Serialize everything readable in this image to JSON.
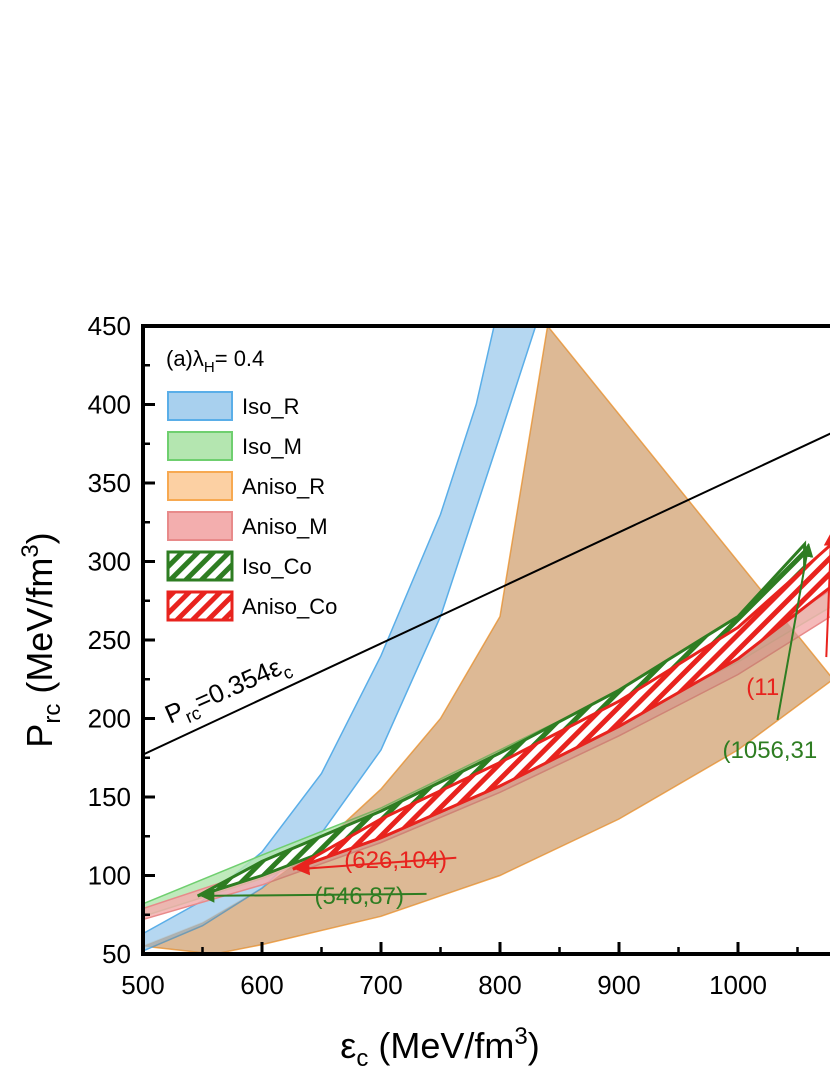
{
  "chart_data": {
    "type": "area",
    "panel_label": "(a)",
    "panel_param": "λ",
    "panel_param_sub": "H",
    "panel_param_value": "= 0.4",
    "xlabel_sym": "ε",
    "xlabel_sub": "c",
    "xlabel_unit": " (MeV/fm",
    "xlabel_sup": "3",
    "xlabel_close": ")",
    "ylabel_sym": "P",
    "ylabel_sub": "rc",
    "ylabel_unit": " (MeV/fm",
    "ylabel_sup": "3",
    "ylabel_close": ")",
    "xlim": [
      500,
      1080
    ],
    "ylim": [
      50,
      450
    ],
    "x_ticks": [
      500,
      600,
      700,
      800,
      900,
      1000
    ],
    "x_tick_labels": [
      "500",
      "600",
      "700",
      "800",
      "900",
      "1000"
    ],
    "y_ticks": [
      50,
      100,
      150,
      200,
      250,
      300,
      350,
      400,
      450
    ],
    "y_tick_labels": [
      "50",
      "100",
      "150",
      "200",
      "250",
      "300",
      "350",
      "400",
      "450"
    ],
    "reference_line": {
      "slope": 0.354,
      "label_p": "P",
      "label_sub": "rc",
      "label_eq": "=0.354ε",
      "label_sub2": "c"
    },
    "series": [
      {
        "name": "Iso_R",
        "style": "band",
        "color": "#5aaee8",
        "fill": "#a8d0ee",
        "upper": [
          [
            500,
            63
          ],
          [
            550,
            84
          ],
          [
            600,
            115
          ],
          [
            650,
            165
          ],
          [
            700,
            240
          ],
          [
            750,
            330
          ],
          [
            780,
            400
          ],
          [
            795,
            450
          ]
        ],
        "lower": [
          [
            500,
            52
          ],
          [
            550,
            68
          ],
          [
            600,
            92
          ],
          [
            650,
            127
          ],
          [
            700,
            180
          ],
          [
            750,
            265
          ],
          [
            800,
            380
          ],
          [
            830,
            450
          ]
        ]
      },
      {
        "name": "Iso_M",
        "style": "band",
        "color": "#6fcf6f",
        "fill": "#b4e6b0",
        "upper": [
          [
            500,
            82
          ],
          [
            600,
            113
          ],
          [
            700,
            143
          ],
          [
            800,
            180
          ],
          [
            900,
            217
          ],
          [
            1000,
            257
          ],
          [
            1080,
            295
          ]
        ],
        "lower": [
          [
            500,
            74
          ],
          [
            600,
            98
          ],
          [
            700,
            127
          ],
          [
            800,
            161
          ],
          [
            900,
            198
          ],
          [
            1000,
            236
          ],
          [
            1080,
            272
          ]
        ]
      },
      {
        "name": "Aniso_R",
        "style": "band",
        "color": "#f7a951",
        "fill": "#fcd0a3",
        "upper": [
          [
            500,
            55
          ],
          [
            550,
            70
          ],
          [
            600,
            92
          ],
          [
            650,
            120
          ],
          [
            700,
            155
          ],
          [
            750,
            200
          ],
          [
            800,
            265
          ],
          [
            840,
            450
          ]
        ],
        "lower": [
          [
            560,
            50
          ],
          [
            600,
            56
          ],
          [
            700,
            74
          ],
          [
            800,
            100
          ],
          [
            900,
            136
          ],
          [
            1000,
            180
          ],
          [
            1080,
            225
          ]
        ]
      },
      {
        "name": "Aniso_M",
        "style": "band",
        "color": "#e88a8a",
        "fill": "#f3aeae",
        "upper": [
          [
            500,
            79
          ],
          [
            600,
            104
          ],
          [
            700,
            132
          ],
          [
            800,
            165
          ],
          [
            900,
            202
          ],
          [
            1000,
            243
          ],
          [
            1080,
            283
          ]
        ],
        "lower": [
          [
            500,
            72
          ],
          [
            600,
            94
          ],
          [
            700,
            121
          ],
          [
            800,
            153
          ],
          [
            900,
            189
          ],
          [
            1000,
            228
          ],
          [
            1080,
            266
          ]
        ]
      },
      {
        "name": "Iso_Co",
        "style": "hatched",
        "color": "#2e7d22",
        "upper": [
          [
            546,
            87
          ],
          [
            600,
            109
          ],
          [
            700,
            141
          ],
          [
            800,
            178
          ],
          [
            900,
            218
          ],
          [
            1000,
            265
          ],
          [
            1056,
            311
          ]
        ],
        "lower": [
          [
            546,
            87
          ],
          [
            600,
            100
          ],
          [
            700,
            129
          ],
          [
            800,
            163
          ],
          [
            900,
            201
          ],
          [
            1000,
            246
          ],
          [
            1056,
            285
          ]
        ]
      },
      {
        "name": "Aniso_Co",
        "style": "hatched",
        "color": "#e8231e",
        "upper": [
          [
            626,
            104
          ],
          [
            700,
            136
          ],
          [
            800,
            172
          ],
          [
            900,
            211
          ],
          [
            1000,
            258
          ],
          [
            1080,
            312
          ]
        ],
        "lower": [
          [
            626,
            104
          ],
          [
            700,
            124
          ],
          [
            800,
            157
          ],
          [
            900,
            195
          ],
          [
            1000,
            238
          ],
          [
            1080,
            285
          ]
        ]
      }
    ],
    "annotations": [
      {
        "text": "(626,104)",
        "color": "#e8231e",
        "text_x": 770,
        "text_y": 110,
        "to_x": 626,
        "to_y": 104
      },
      {
        "text": "(546,87)",
        "color": "#2e7d22",
        "text_x": 745,
        "text_y": 87,
        "to_x": 546,
        "to_y": 87
      },
      {
        "text": "(1056,31",
        "color": "#2e7d22",
        "text_x": 1050,
        "text_y": 180,
        "to_x": 1056,
        "to_y": 311
      },
      {
        "text": "(11",
        "color": "#e8231e",
        "text_x": 1070,
        "text_y": 220,
        "to_x": 1075,
        "to_y": 318
      }
    ]
  }
}
